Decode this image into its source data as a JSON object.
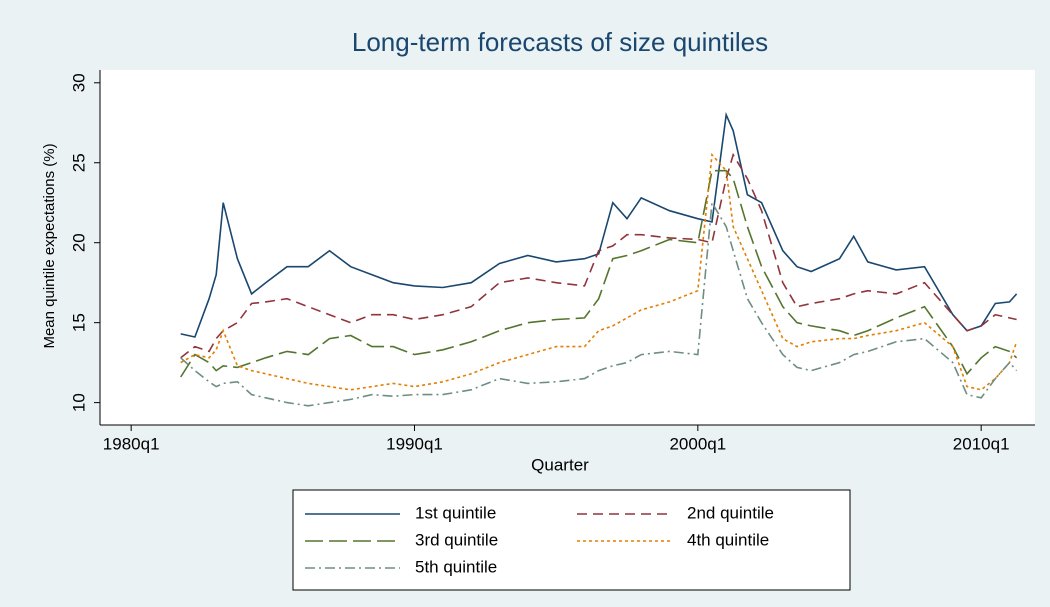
{
  "chart_data": {
    "type": "line",
    "title": "Long-term forecasts of size quintiles",
    "xlabel": "Quarter",
    "ylabel": "Mean quintile expectations (%)",
    "x": [
      1981.75,
      1982.25,
      1982.75,
      1983.0,
      1983.25,
      1983.75,
      1984.25,
      1984.75,
      1985.5,
      1986.25,
      1987,
      1987.75,
      1988.5,
      1989.25,
      1990,
      1991,
      1992,
      1993,
      1994,
      1995,
      1996,
      1996.5,
      1997,
      1997.5,
      1998,
      1999,
      2000,
      2000.5,
      2001,
      2001.25,
      2001.75,
      2002.25,
      2003,
      2003.5,
      2004,
      2005,
      2005.5,
      2006,
      2007,
      2008,
      2009,
      2009.5,
      2010,
      2010.5,
      2011,
      2011.25
    ],
    "series": [
      {
        "name": "1st quintile",
        "color": "#1a476f",
        "dash": "solid",
        "values": [
          14.3,
          14.1,
          16.5,
          18,
          22.5,
          19,
          16.8,
          17.5,
          18.5,
          18.5,
          19.5,
          18.5,
          18,
          17.5,
          17.3,
          17.2,
          17.5,
          18.7,
          19.2,
          18.8,
          19,
          19.3,
          22.5,
          21.5,
          22.8,
          22,
          21.5,
          21.3,
          28,
          27,
          23,
          22.5,
          19.5,
          18.5,
          18.2,
          19,
          20.4,
          18.8,
          18.3,
          18.5,
          15.5,
          14.5,
          14.8,
          16.2,
          16.3,
          16.8
        ]
      },
      {
        "name": "2nd quintile",
        "color": "#90353b",
        "dash": "dashed",
        "values": [
          12.8,
          13.5,
          13.2,
          14,
          14.5,
          15,
          16.2,
          16.3,
          16.5,
          16,
          15.5,
          15,
          15.5,
          15.5,
          15.2,
          15.5,
          16,
          17.5,
          17.8,
          17.5,
          17.3,
          19.5,
          19.8,
          20.5,
          20.5,
          20.3,
          20.2,
          20,
          24,
          25.5,
          24,
          22,
          17.5,
          16,
          16.2,
          16.5,
          16.8,
          17,
          16.8,
          17.5,
          15.5,
          14.5,
          14.8,
          15.5,
          15.3,
          15.2
        ]
      },
      {
        "name": "3rd quintile",
        "color": "#55752f",
        "dash": "longdash",
        "values": [
          11.6,
          13,
          12.5,
          12,
          12.3,
          12.2,
          12.5,
          12.8,
          13.2,
          13,
          14,
          14.2,
          13.5,
          13.5,
          13,
          13.3,
          13.8,
          14.5,
          15,
          15.2,
          15.3,
          16.5,
          19,
          19.2,
          19.5,
          20.2,
          20,
          24.5,
          24.5,
          24,
          21,
          18.5,
          16,
          15,
          14.8,
          14.5,
          14.2,
          14.5,
          15.3,
          16,
          13.5,
          11.8,
          12.8,
          13.5,
          13.2,
          12.8
        ]
      },
      {
        "name": "4th quintile",
        "color": "#e37e00",
        "dash": "dotted",
        "values": [
          12.5,
          13,
          12.8,
          13.3,
          14.5,
          12.3,
          12,
          11.8,
          11.5,
          11.2,
          11,
          10.8,
          11,
          11.2,
          11,
          11.3,
          11.8,
          12.5,
          13,
          13.5,
          13.5,
          14.5,
          14.8,
          15.3,
          15.8,
          16.3,
          17,
          25.5,
          24.5,
          21,
          19,
          17,
          14,
          13.5,
          13.8,
          14,
          14,
          14.2,
          14.5,
          15,
          13.5,
          11,
          10.8,
          11.5,
          12.5,
          13.8
        ]
      },
      {
        "name": "5th quintile",
        "color": "#6e8e84",
        "dash": "dashdot",
        "values": [
          12.8,
          12,
          11.3,
          11,
          11.2,
          11.3,
          10.5,
          10.3,
          10,
          9.8,
          10,
          10.2,
          10.5,
          10.4,
          10.5,
          10.5,
          10.8,
          11.5,
          11.2,
          11.3,
          11.5,
          12,
          12.3,
          12.5,
          13,
          13.2,
          13,
          22.5,
          21,
          19.5,
          16.5,
          15,
          13,
          12.2,
          12,
          12.5,
          13,
          13.2,
          13.8,
          14,
          12.5,
          10.5,
          10.3,
          11.5,
          12.5,
          12
        ]
      }
    ],
    "xlim": [
      1978.9,
      2011.9
    ],
    "xticks": [
      {
        "value": 1980,
        "label": "1980q1"
      },
      {
        "value": 1990,
        "label": "1990q1"
      },
      {
        "value": 2000,
        "label": "2000q1"
      },
      {
        "value": 2010,
        "label": "2010q1"
      }
    ],
    "ylim": [
      8.6,
      30.8
    ],
    "yticks": [
      10,
      15,
      20,
      25,
      30
    ],
    "grid": false,
    "legend": "bottom"
  }
}
